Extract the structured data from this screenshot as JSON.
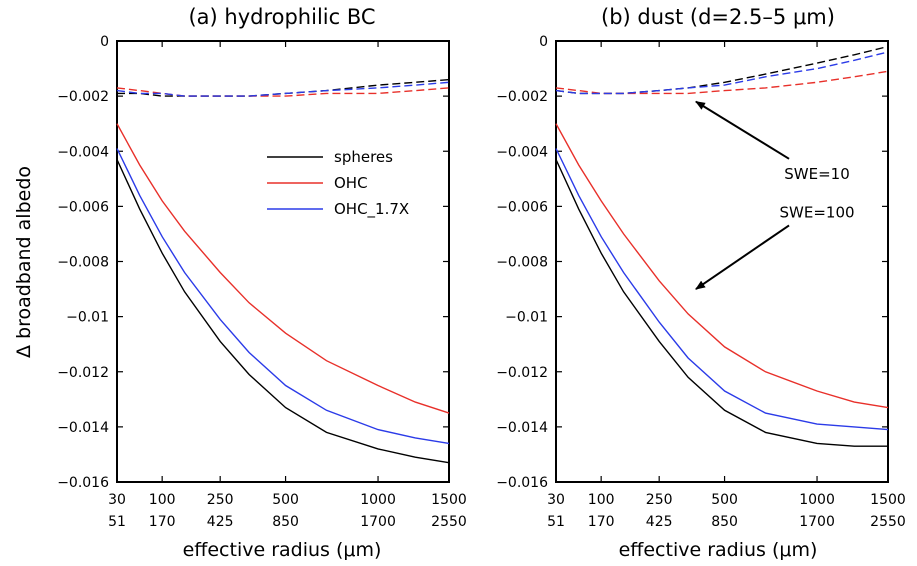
{
  "figure": {
    "ylabel": "Δ broadband albedo"
  },
  "chart_data": [
    {
      "type": "line",
      "title": "(a) hydrophilic BC",
      "xlabel": "effective radius (μm)",
      "ylabel": "Δ broadband albedo",
      "ylim": [
        -0.016,
        0
      ],
      "xlim": [
        30,
        1500
      ],
      "x_scale": "sqrt",
      "x": [
        30,
        60,
        100,
        150,
        250,
        350,
        500,
        700,
        1000,
        1250,
        1500
      ],
      "xticks": [
        30,
        100,
        250,
        500,
        1000,
        1500
      ],
      "xtick_labels": [
        "30",
        "100",
        "250",
        "500",
        "1000",
        "1500"
      ],
      "xtick_labels_secondary": [
        "51",
        "170",
        "425",
        "850",
        "1700",
        "2550"
      ],
      "yticks": [
        0,
        -0.002,
        -0.004,
        -0.006,
        -0.008,
        -0.01,
        -0.012,
        -0.014,
        -0.016
      ],
      "ytick_labels": [
        "0",
        "−0.002",
        "−0.004",
        "−0.006",
        "−0.008",
        "−0.01",
        "−0.012",
        "−0.014",
        "−0.016"
      ],
      "legend": {
        "placement": "center-right",
        "entries": [
          {
            "label": "spheres",
            "color": "#000000"
          },
          {
            "label": "OHC",
            "color": "#e8302a"
          },
          {
            "label": "OHC_1.7X",
            "color": "#2b3be8"
          }
        ]
      },
      "series": [
        {
          "label_ref": 0,
          "group": "SWE=100",
          "dashed": false,
          "color": "#000000",
          "values": [
            -0.0043,
            -0.0061,
            -0.0077,
            -0.0091,
            -0.0109,
            -0.0121,
            -0.0133,
            -0.0142,
            -0.0148,
            -0.0151,
            -0.0153
          ]
        },
        {
          "label_ref": 1,
          "group": "SWE=100",
          "dashed": false,
          "color": "#e8302a",
          "values": [
            -0.003,
            -0.0045,
            -0.0058,
            -0.0069,
            -0.0084,
            -0.0095,
            -0.0106,
            -0.0116,
            -0.0125,
            -0.0131,
            -0.0135
          ]
        },
        {
          "label_ref": 2,
          "group": "SWE=100",
          "dashed": false,
          "color": "#2b3be8",
          "values": [
            -0.0039,
            -0.0056,
            -0.0071,
            -0.0084,
            -0.0101,
            -0.0113,
            -0.0125,
            -0.0134,
            -0.0141,
            -0.0144,
            -0.0146
          ]
        },
        {
          "label_ref": 0,
          "group": "SWE=10",
          "dashed": true,
          "color": "#000000",
          "values": [
            -0.0019,
            -0.0019,
            -0.002,
            -0.002,
            -0.002,
            -0.002,
            -0.0019,
            -0.0018,
            -0.0016,
            -0.0015,
            -0.0014
          ]
        },
        {
          "label_ref": 1,
          "group": "SWE=10",
          "dashed": true,
          "color": "#e8302a",
          "values": [
            -0.0017,
            -0.0018,
            -0.0019,
            -0.002,
            -0.002,
            -0.002,
            -0.002,
            -0.0019,
            -0.0019,
            -0.0018,
            -0.0017
          ]
        },
        {
          "label_ref": 2,
          "group": "SWE=10",
          "dashed": true,
          "color": "#2b3be8",
          "values": [
            -0.0018,
            -0.0019,
            -0.0019,
            -0.002,
            -0.002,
            -0.002,
            -0.0019,
            -0.0018,
            -0.0017,
            -0.0016,
            -0.0015
          ]
        }
      ]
    },
    {
      "type": "line",
      "title": "(b) dust (d=2.5–5 μm)",
      "xlabel": "effective radius (μm)",
      "ylim": [
        -0.016,
        0
      ],
      "xlim": [
        30,
        1500
      ],
      "x_scale": "sqrt",
      "x": [
        30,
        60,
        100,
        150,
        250,
        350,
        500,
        700,
        1000,
        1250,
        1500
      ],
      "xticks": [
        30,
        100,
        250,
        500,
        1000,
        1500
      ],
      "xtick_labels": [
        "30",
        "100",
        "250",
        "500",
        "1000",
        "1500"
      ],
      "xtick_labels_secondary": [
        "51",
        "170",
        "425",
        "850",
        "1700",
        "2550"
      ],
      "yticks": [
        0,
        -0.002,
        -0.004,
        -0.006,
        -0.008,
        -0.01,
        -0.012,
        -0.014,
        -0.016
      ],
      "ytick_labels": [
        "0",
        "−0.002",
        "−0.004",
        "−0.006",
        "−0.008",
        "−0.01",
        "−0.012",
        "−0.014",
        "−0.016"
      ],
      "annotations": [
        {
          "text": "SWE=10",
          "label_at": [
            1000,
            -0.005
          ],
          "arrow_to": [
            380,
            -0.0022
          ]
        },
        {
          "text": "SWE=100",
          "label_at": [
            1000,
            -0.0064
          ],
          "arrow_to": [
            380,
            -0.009
          ]
        }
      ],
      "series": [
        {
          "name": "spheres",
          "group": "SWE=100",
          "dashed": false,
          "color": "#000000",
          "values": [
            -0.0043,
            -0.0061,
            -0.0077,
            -0.0091,
            -0.0109,
            -0.0122,
            -0.0134,
            -0.0142,
            -0.0146,
            -0.0147,
            -0.0147
          ]
        },
        {
          "name": "OHC",
          "group": "SWE=100",
          "dashed": false,
          "color": "#e8302a",
          "values": [
            -0.003,
            -0.0045,
            -0.0058,
            -0.007,
            -0.0087,
            -0.0099,
            -0.0111,
            -0.012,
            -0.0127,
            -0.0131,
            -0.0133
          ]
        },
        {
          "name": "OHC_1.7X",
          "group": "SWE=100",
          "dashed": false,
          "color": "#2b3be8",
          "values": [
            -0.0039,
            -0.0056,
            -0.0071,
            -0.0084,
            -0.0102,
            -0.0115,
            -0.0127,
            -0.0135,
            -0.0139,
            -0.014,
            -0.0141
          ]
        },
        {
          "name": "spheres",
          "group": "SWE=10",
          "dashed": true,
          "color": "#000000",
          "values": [
            -0.0018,
            -0.0019,
            -0.0019,
            -0.0019,
            -0.0018,
            -0.0017,
            -0.0015,
            -0.0012,
            -0.0008,
            -0.0005,
            -0.0002
          ]
        },
        {
          "name": "OHC",
          "group": "SWE=10",
          "dashed": true,
          "color": "#e8302a",
          "values": [
            -0.0017,
            -0.0018,
            -0.0019,
            -0.0019,
            -0.0019,
            -0.0019,
            -0.0018,
            -0.0017,
            -0.0015,
            -0.0013,
            -0.0011
          ]
        },
        {
          "name": "OHC_1.7X",
          "group": "SWE=10",
          "dashed": true,
          "color": "#2b3be8",
          "values": [
            -0.0018,
            -0.0019,
            -0.0019,
            -0.0019,
            -0.0018,
            -0.0017,
            -0.0016,
            -0.0013,
            -0.001,
            -0.0007,
            -0.0004
          ]
        }
      ]
    }
  ]
}
